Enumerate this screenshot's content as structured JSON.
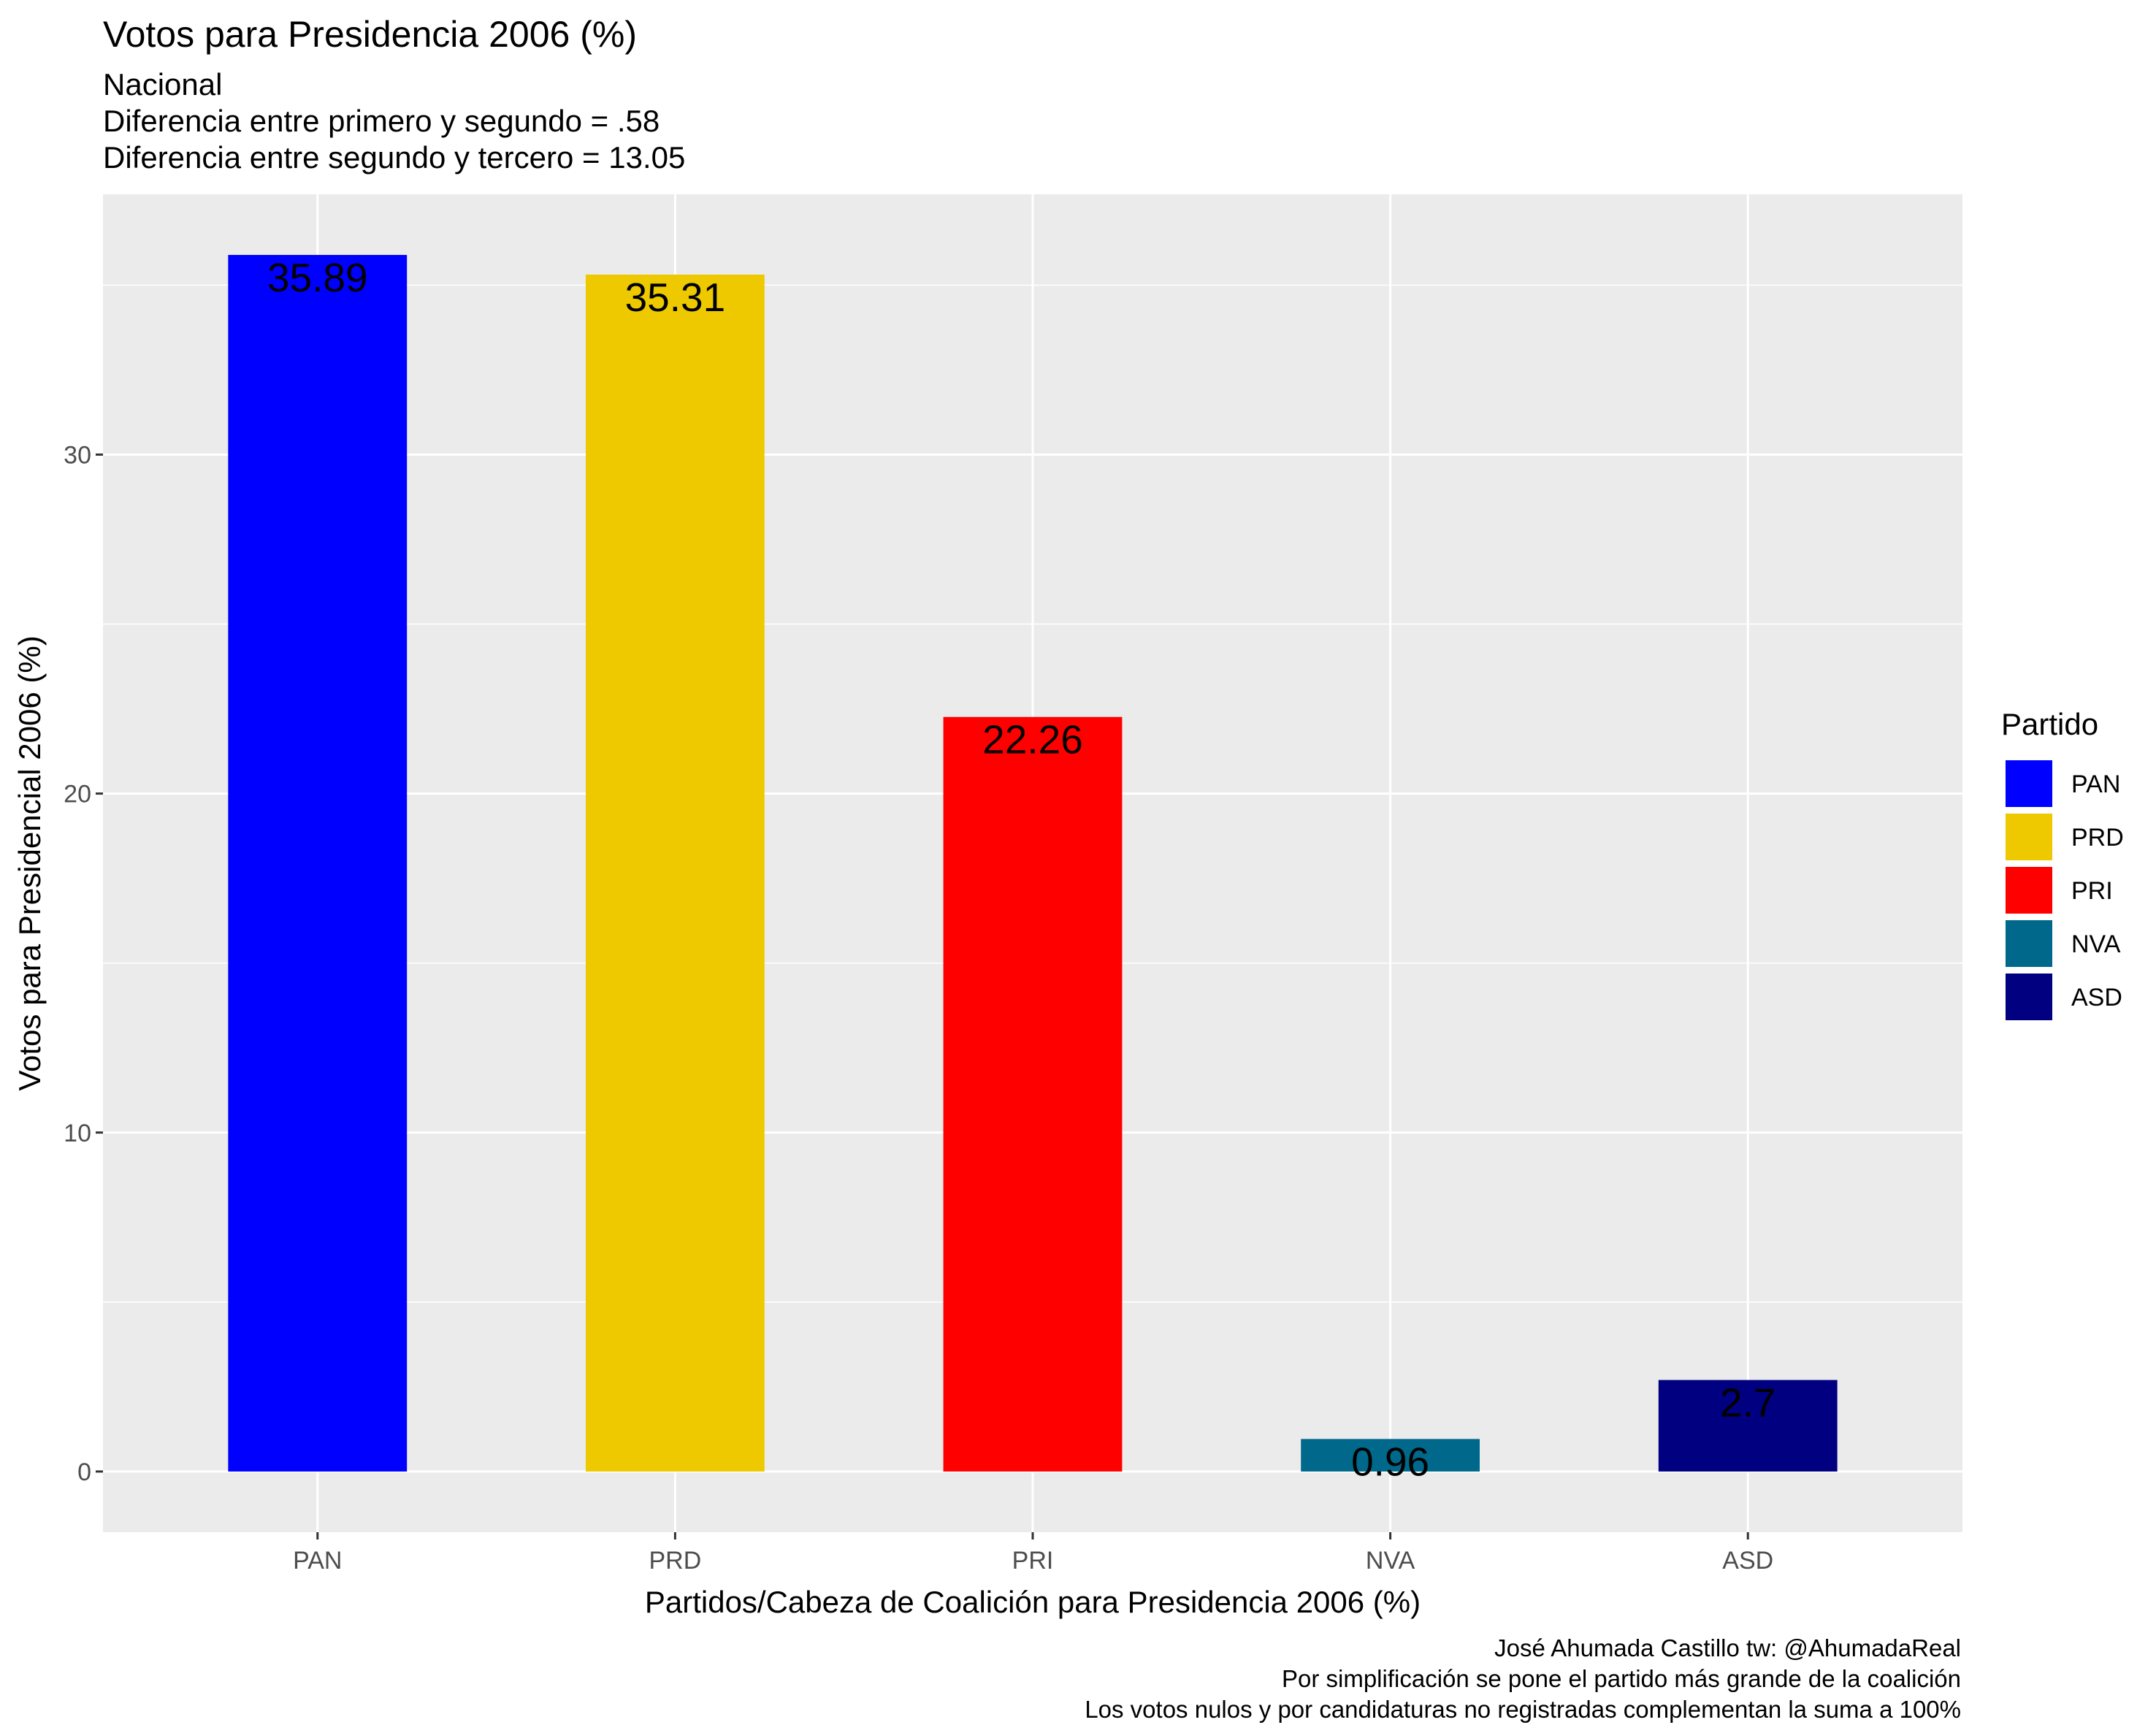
{
  "chart_data": {
    "type": "bar",
    "title": "Votos para Presidencia 2006 (%)",
    "subtitle": [
      "Nacional",
      "Diferencia entre primero y segundo = .58",
      "Diferencia entre segundo y tercero = 13.05"
    ],
    "xlabel": "Partidos/Cabeza de Coalición para Presidencia 2006 (%)",
    "ylabel": "Votos para Presidencial 2006 (%)",
    "categories": [
      "PAN",
      "PRD",
      "PRI",
      "NVA",
      "ASD"
    ],
    "values": [
      35.89,
      35.31,
      22.26,
      0.96,
      2.7
    ],
    "data_labels": [
      "35.89",
      "35.31",
      "22.26",
      "0.96",
      "2.7"
    ],
    "colors": [
      "#0000FF",
      "#EEC900",
      "#FF0000",
      "#00688B",
      "#000080"
    ],
    "ylim": [
      -1.79,
      37.68
    ],
    "yticks": [
      0,
      10,
      20,
      30
    ],
    "grid": true,
    "legend": {
      "title": "Partido",
      "placement": "right",
      "entries": [
        "PAN",
        "PRD",
        "PRI",
        "NVA",
        "ASD"
      ]
    },
    "caption": [
      "José Ahumada Castillo   tw: @AhumadaReal",
      "Por simplificación se pone el partido más grande de la coalición ",
      "Los votos nulos y por candidaturas no registradas complementan la suma a 100%"
    ]
  }
}
